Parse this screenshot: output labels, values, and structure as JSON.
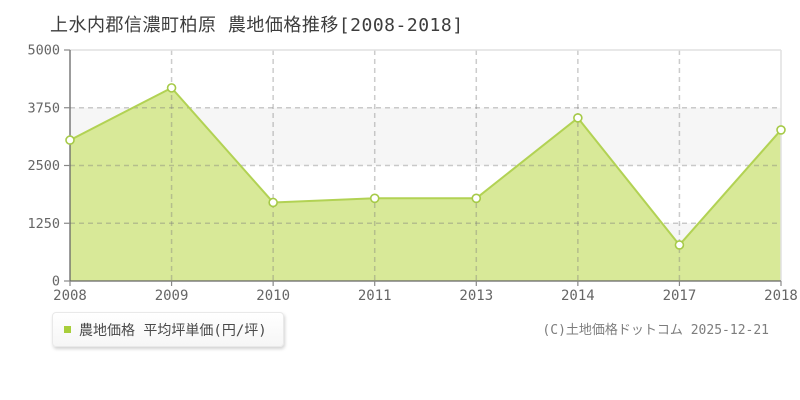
{
  "title": "上水内郡信濃町柏原 農地価格推移[2008-2018]",
  "legend": {
    "label": "農地価格 平均坪単価(円/坪)",
    "marker_color": "#a8ce3b"
  },
  "footer": {
    "copyright": "(C)土地価格ドットコム 2025-12-21"
  },
  "chart_data": {
    "type": "area",
    "title": "上水内郡信濃町柏原 農地価格推移[2008-2018]",
    "categories": [
      "2008",
      "2009",
      "2010",
      "2011",
      "2013",
      "2014",
      "2017",
      "2018"
    ],
    "series": [
      {
        "name": "農地価格 平均坪単価(円/坪)",
        "values": [
          3050,
          4180,
          1700,
          1790,
          1790,
          3530,
          780,
          3270
        ]
      }
    ],
    "xlabel": "",
    "ylabel": "",
    "ylim": [
      0,
      5000
    ],
    "yticks": [
      0,
      1250,
      2500,
      3750,
      5000
    ],
    "grid": "dashed",
    "legend_position": "bottom-left",
    "colors": {
      "area_fill": "#d6e892",
      "area_opacity": "0.95",
      "line": "#b2d254",
      "marker_fill": "#ffffff",
      "marker_stroke": "#a6ca48",
      "grid": "#7a7a7a",
      "grid_opacity": "0.38",
      "axis": "#666666",
      "tick": "#888888",
      "band_alt": "#f6f6f6",
      "plot_border": "#e1e1e1",
      "tick_text": "#666666"
    }
  }
}
